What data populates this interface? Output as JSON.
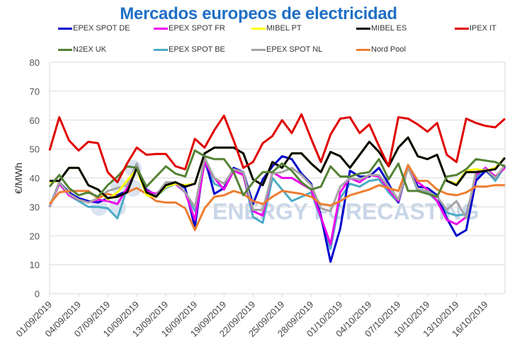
{
  "chart_data": {
    "type": "line",
    "title": "Mercados europeos de electricidad",
    "xlabel": "",
    "ylabel": "€/MWh",
    "ylim": [
      0,
      80
    ],
    "yticks": [
      0,
      10,
      20,
      30,
      40,
      50,
      60,
      70,
      80
    ],
    "grid": true,
    "legend_position": "top",
    "watermark": "ENERGY FORECASTING",
    "x_start": "01/09/2019",
    "x_tick_labels": [
      "01/09/2019",
      "04/09/2019",
      "07/09/2019",
      "10/09/2019",
      "13/09/2019",
      "16/09/2019",
      "19/09/2019",
      "22/09/2019",
      "25/09/2019",
      "28/09/2019",
      "01/10/2019",
      "04/10/2019",
      "07/10/2019",
      "10/10/2019",
      "13/10/2019",
      "16/10/2019"
    ],
    "x_tick_step_days": 3,
    "num_days": 48,
    "series": [
      {
        "name": "EPEX SPOT DE",
        "color": "#0000cc",
        "values": [
          30,
          38.5,
          35,
          33,
          32,
          31.5,
          33,
          34,
          35.5,
          44,
          36,
          34,
          37.5,
          38.5,
          36.5,
          23,
          47,
          34.5,
          36.5,
          43.5,
          42,
          31,
          39.5,
          44,
          47.5,
          46.5,
          41.5,
          38,
          27,
          11,
          22.5,
          42.5,
          40.5,
          40.5,
          43.5,
          38,
          31.5,
          44,
          37,
          36.5,
          34,
          26,
          20,
          22,
          39,
          42.5,
          40,
          44
        ]
      },
      {
        "name": "EPEX SPOT FR",
        "color": "#ee00ee",
        "values": [
          30,
          38,
          34,
          32.5,
          31.5,
          32.5,
          32,
          31,
          36.5,
          44,
          35.5,
          34.5,
          37.5,
          38,
          35,
          25.5,
          45.5,
          40,
          36,
          42.5,
          41,
          28.5,
          27,
          42,
          40,
          40,
          38,
          36,
          26.5,
          17,
          35,
          40,
          38.5,
          41,
          40.5,
          36,
          32,
          44,
          38.5,
          36,
          32,
          25.5,
          24,
          26.5,
          41,
          43.5,
          40.5,
          43.5
        ]
      },
      {
        "name": "MIBEL PT",
        "color": "#ffff00",
        "values": [
          38.5,
          39,
          43.5,
          43.5,
          37.5,
          36,
          32.5,
          35,
          39,
          43,
          34,
          33.5,
          37,
          38,
          37.5,
          38,
          48.5,
          50.5,
          50.5,
          50.5,
          48.5,
          39.5,
          37.5,
          45.5,
          43.5,
          48.5,
          48.5,
          45,
          42,
          49,
          47.5,
          43.5,
          48,
          52.5,
          49,
          44,
          50.5,
          54,
          47.5,
          46.5,
          48,
          39,
          38,
          42.5,
          43,
          42.5,
          43.5,
          47
        ]
      },
      {
        "name": "MIBEL ES",
        "color": "#000000",
        "values": [
          39,
          39,
          43.5,
          43.5,
          37.5,
          36,
          33,
          33.5,
          35,
          43.5,
          35,
          33.5,
          37.5,
          38.5,
          37,
          38,
          48.5,
          50.5,
          50.5,
          50.5,
          48.5,
          39.5,
          37.5,
          45.5,
          43.5,
          48.5,
          48.5,
          45,
          42,
          49,
          47.5,
          43.5,
          48,
          52.5,
          49,
          44,
          50.5,
          54,
          47.5,
          46.5,
          48,
          39,
          37.5,
          42,
          42,
          42.5,
          43,
          47
        ]
      },
      {
        "name": "IPEX IT",
        "color": "#e00000",
        "values": [
          49.5,
          61,
          53,
          49.5,
          52.5,
          52,
          42,
          38.5,
          45,
          50.5,
          48,
          48.3,
          48.3,
          44,
          43,
          53.5,
          50.5,
          56.5,
          61.5,
          53,
          43.5,
          45.5,
          52,
          54.5,
          60,
          55.5,
          62,
          53.5,
          45.5,
          55,
          60.5,
          61,
          55.5,
          58.5,
          51,
          44,
          61,
          60.5,
          58.5,
          56,
          59,
          48,
          45.5,
          60.5,
          59,
          58,
          57.5,
          60.5
        ]
      },
      {
        "name": "N2EX UK",
        "color": "#548235",
        "values": [
          37,
          41,
          36.5,
          34,
          35,
          33.5,
          37.5,
          40.5,
          44,
          43.5,
          37,
          40.5,
          44,
          41.5,
          40.5,
          49.5,
          47.5,
          46.5,
          46.5,
          42,
          34,
          38.5,
          42,
          42,
          45,
          42.5,
          38.5,
          36,
          37,
          44,
          40.5,
          40.5,
          41.5,
          42,
          46.5,
          39.5,
          45,
          35.5,
          35.5,
          34.5,
          33.5,
          40.5,
          41,
          43,
          46.5,
          46,
          45.5,
          44
        ]
      },
      {
        "name": "EPEX SPOT BE",
        "color": "#4bacc6",
        "values": [
          30,
          38,
          34,
          32,
          30,
          30,
          29.5,
          26,
          36.5,
          44,
          34.5,
          33.5,
          36.5,
          38,
          35,
          28.5,
          45,
          38,
          36.5,
          43,
          41,
          26.5,
          24.5,
          40,
          36,
          32,
          33.5,
          35,
          26,
          15.5,
          33,
          38,
          37,
          39,
          39.5,
          35,
          31.5,
          44,
          35.5,
          35,
          32,
          28,
          27,
          27.5,
          40,
          43,
          39,
          44
        ]
      },
      {
        "name": "EPEX SPOT NL",
        "color": "#a5a5a5",
        "values": [
          30,
          38.5,
          34.5,
          32.5,
          31.5,
          33,
          35.5,
          36.5,
          37.5,
          45,
          34.5,
          34,
          38.5,
          38.5,
          35,
          30,
          47,
          40,
          38,
          43,
          42,
          29,
          29,
          41.5,
          42,
          43.5,
          41,
          37.5,
          29.5,
          28.5,
          37,
          40,
          39.5,
          41,
          41,
          37,
          32.5,
          43.5,
          36,
          35.5,
          33.5,
          29,
          32,
          26,
          42,
          43,
          40,
          44.5
        ]
      },
      {
        "name": "Nord Pool",
        "color": "#ed7d31",
        "values": [
          31,
          35,
          35.5,
          35.5,
          35.5,
          33,
          34.5,
          33.5,
          35,
          36.5,
          34.5,
          32,
          31.5,
          31.5,
          29.5,
          22,
          29.5,
          33.5,
          34,
          35.5,
          34.5,
          32,
          31,
          33.5,
          35.5,
          35,
          34.5,
          33.5,
          31,
          30.5,
          32,
          34,
          35,
          36,
          37.5,
          36.5,
          35.5,
          44.5,
          39,
          39,
          36,
          34.5,
          34,
          35,
          37,
          37,
          37.5,
          37.5
        ]
      }
    ]
  }
}
